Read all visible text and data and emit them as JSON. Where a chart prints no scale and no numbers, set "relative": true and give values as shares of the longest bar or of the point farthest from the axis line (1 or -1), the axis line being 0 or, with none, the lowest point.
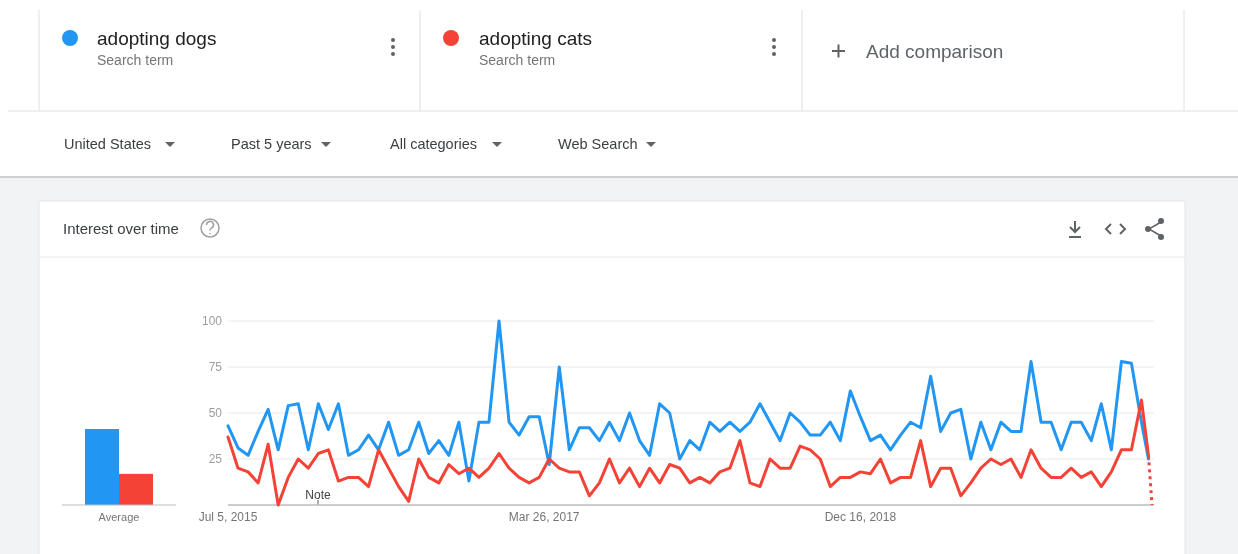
{
  "chart_data": [
    {
      "type": "bar",
      "relative": true,
      "categories": [
        null,
        null
      ],
      "values": [
        1,
        0.41
      ],
      "colors": [
        "#2196f3",
        "#f44336"
      ],
      "xlabel": "Average"
    },
    {
      "type": "line",
      "title": "Interest over time",
      "legend": "top",
      "grid": "y",
      "marker": "none",
      "line_style": "solid",
      "x": [
        "2015-07-05",
        "2015-07-25",
        "2015-08-14",
        "2015-09-03",
        "2015-09-23",
        "2015-10-13",
        "2015-11-02",
        "2015-11-22",
        "2015-12-12",
        "2016-01-01",
        "2016-01-21",
        "2016-02-10",
        "2016-03-01",
        "2016-03-21",
        "2016-04-10",
        "2016-04-30",
        "2016-05-20",
        "2016-06-09",
        "2016-06-29",
        "2016-07-19",
        "2016-08-08",
        "2016-08-28",
        "2016-09-17",
        "2016-10-07",
        "2016-10-27",
        "2016-11-16",
        "2016-12-06",
        "2016-12-26",
        "2017-01-15",
        "2017-02-04",
        "2017-02-24",
        "2017-03-16",
        "2017-04-05",
        "2017-04-25",
        "2017-05-15",
        "2017-06-04",
        "2017-06-24",
        "2017-07-14",
        "2017-08-03",
        "2017-08-23",
        "2017-09-12",
        "2017-10-02",
        "2017-10-22",
        "2017-11-11",
        "2017-12-01",
        "2017-12-21",
        "2018-01-10",
        "2018-01-30",
        "2018-02-19",
        "2018-03-11",
        "2018-03-31",
        "2018-04-20",
        "2018-05-10",
        "2018-05-30",
        "2018-06-19",
        "2018-07-09",
        "2018-07-29",
        "2018-08-18",
        "2018-09-07",
        "2018-09-27",
        "2018-10-17",
        "2018-11-06",
        "2018-11-26",
        "2018-12-16",
        "2019-01-05",
        "2019-01-25",
        "2019-02-14",
        "2019-03-06",
        "2019-03-26",
        "2019-04-15",
        "2019-05-05",
        "2019-05-25",
        "2019-06-14",
        "2019-07-04",
        "2019-07-24",
        "2019-08-13",
        "2019-09-02",
        "2019-09-22",
        "2019-10-12",
        "2019-11-01",
        "2019-11-21",
        "2019-12-11",
        "2019-12-31",
        "2020-01-20",
        "2020-02-09",
        "2020-02-29",
        "2020-03-20",
        "2020-04-09",
        "2020-04-29",
        "2020-05-19",
        "2020-06-08",
        "2020-06-28",
        "2020-07-12"
      ],
      "series": [
        {
          "name": "adopting dogs",
          "color": "#2196f3",
          "values": [
            43,
            31,
            27,
            40,
            52,
            30,
            54,
            55,
            30,
            55,
            41,
            55,
            27,
            30,
            38,
            30,
            45,
            27,
            30,
            45,
            28,
            35,
            27,
            45,
            13,
            45,
            45,
            100,
            45,
            38,
            48,
            48,
            22,
            75,
            30,
            42,
            42,
            35,
            45,
            35,
            50,
            35,
            27,
            55,
            50,
            25,
            35,
            30,
            45,
            40,
            45,
            40,
            45,
            55,
            45,
            35,
            50,
            45,
            38,
            38,
            45,
            35,
            62,
            48,
            35,
            38,
            30,
            38,
            45,
            42,
            70,
            40,
            50,
            52,
            25,
            45,
            30,
            45,
            40,
            40,
            78,
            45,
            45,
            30,
            45,
            45,
            35,
            55,
            30,
            78,
            77,
            45,
            25
          ]
        },
        {
          "name": "adopting cats",
          "color": "#f44336",
          "values": [
            37,
            20,
            18,
            12,
            33,
            0,
            15,
            25,
            20,
            28,
            30,
            13,
            15,
            15,
            10,
            30,
            20,
            10,
            2,
            25,
            15,
            12,
            22,
            17,
            20,
            15,
            20,
            28,
            20,
            15,
            12,
            15,
            25,
            20,
            18,
            18,
            5,
            12,
            25,
            12,
            20,
            10,
            20,
            12,
            22,
            20,
            12,
            15,
            12,
            18,
            20,
            35,
            12,
            10,
            25,
            20,
            20,
            32,
            30,
            25,
            10,
            15,
            15,
            18,
            17,
            25,
            12,
            15,
            15,
            35,
            10,
            20,
            20,
            5,
            12,
            20,
            25,
            22,
            25,
            15,
            30,
            20,
            15,
            15,
            20,
            15,
            18,
            10,
            18,
            30,
            30,
            57,
            27
          ]
        },
        {
          "color": "#f44336",
          "line_style": "dotted",
          "x": [
            "2020-07-12",
            "2020-07-19"
          ],
          "values": [
            27,
            0
          ]
        }
      ],
      "xlim": [
        "2015-07-05",
        "2020-07-19"
      ],
      "xticks": [
        {
          "value": "2015-07-05",
          "label": "Jul 5, 2015"
        },
        {
          "value": "2017-03-26",
          "label": "Mar 26, 2017"
        },
        {
          "value": "2018-12-16",
          "label": "Dec 16, 2018"
        }
      ],
      "ylim": [
        0,
        100
      ],
      "yticks": [
        {
          "value": 0,
          "label": null
        },
        25,
        50,
        75,
        100
      ],
      "annotations": [
        "Search term",
        "Search term",
        "Add comparison",
        "United States",
        "Past 5 years",
        "All categories",
        "Web Search",
        "Note"
      ]
    }
  ]
}
